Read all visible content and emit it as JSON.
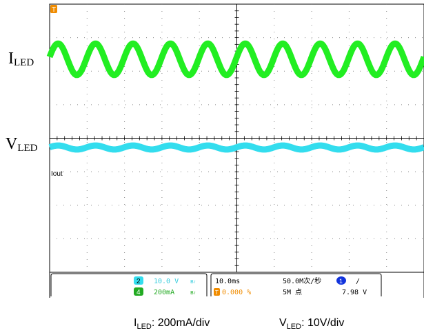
{
  "labels": {
    "i_led": {
      "main": "I",
      "sub": "LED"
    },
    "v_led": {
      "main": "V",
      "sub": "LED"
    }
  },
  "trace_labels": {
    "iout": "Iout"
  },
  "markers": {
    "trigger_marker": "T"
  },
  "status_bar": {
    "ch2": {
      "num": "2",
      "scale": "10.0 V",
      "suffix": "B₇"
    },
    "ch4": {
      "num": "4",
      "scale": "200mA",
      "suffix": "B₇"
    },
    "timebase": "10.0ms",
    "trigger_pos": "0.000 %",
    "sample_rate": "50.0M次/秒",
    "record_length": "5M 点",
    "trigger": {
      "channel": "1",
      "slope": "/",
      "level": "7.98 V"
    }
  },
  "captions": {
    "i_led": {
      "main": "I",
      "sub": "LED",
      "rest": ": 200mA/div"
    },
    "v_led": {
      "main": "V",
      "sub": "LED",
      "rest": ": 10V/div"
    }
  },
  "colors": {
    "ch4_green": "#22ee22",
    "ch2_cyan": "#33ddee",
    "ch1_blue": "#1133dd",
    "trigger_orange": "#f08c00",
    "grid": "#000000"
  },
  "waveforms": {
    "ch4_current": {
      "cycles_visible": 10,
      "peak_divisions": 1.6,
      "offset_divisions": 0.65
    },
    "ch2_voltage": {
      "cycles_visible": 10,
      "peak_divisions": 0.25,
      "offset_divisions": -0.35
    }
  }
}
